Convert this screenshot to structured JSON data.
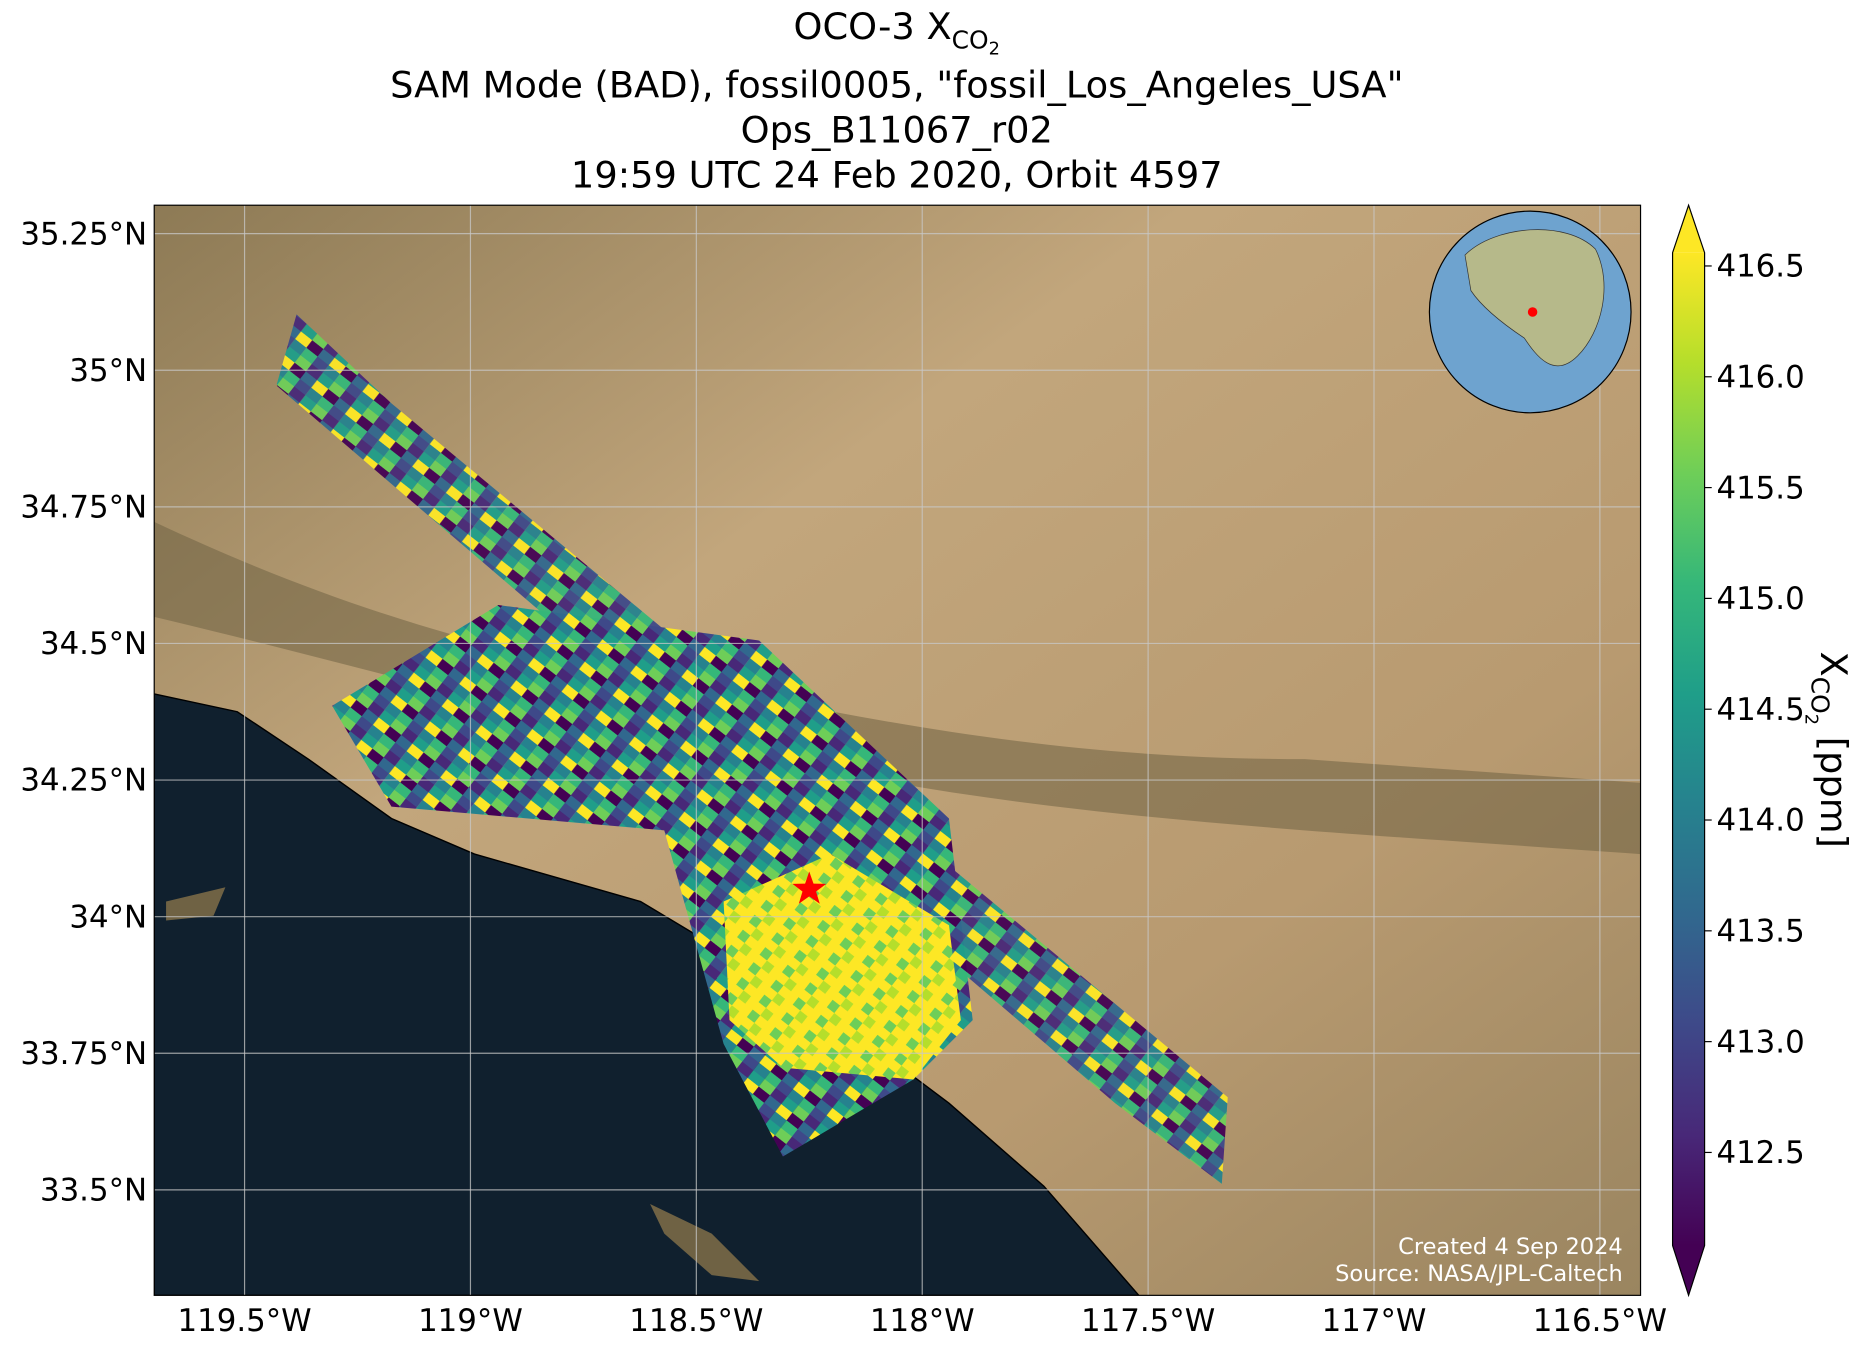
{
  "chart_data": {
    "type": "map",
    "title": {
      "prefix": "OCO-3 X",
      "sub": "CO",
      "subsub": "2"
    },
    "subtitle": [
      "SAM Mode (BAD), fossil0005, \"fossil_Los_Angeles_USA\"",
      "Ops_B11067_r02",
      "19:59 UTC 24 Feb 2020, Orbit 4597"
    ],
    "xlim": [
      -119.7,
      -116.41
    ],
    "ylim": [
      33.307,
      35.302
    ],
    "xticks": [
      {
        "value": -119.5,
        "label": "119.5°W"
      },
      {
        "value": -119,
        "label": "119°W"
      },
      {
        "value": -118.5,
        "label": "118.5°W"
      },
      {
        "value": -118,
        "label": "118°W"
      },
      {
        "value": -117.5,
        "label": "117.5°W"
      },
      {
        "value": -117,
        "label": "117°W"
      },
      {
        "value": -116.5,
        "label": "116.5°W"
      }
    ],
    "yticks": [
      {
        "value": 33.5,
        "label": "33.5°N"
      },
      {
        "value": 33.75,
        "label": "33.75°N"
      },
      {
        "value": 34,
        "label": "34°N"
      },
      {
        "value": 34.25,
        "label": "34.25°N"
      },
      {
        "value": 34.5,
        "label": "34.5°N"
      },
      {
        "value": 34.75,
        "label": "34.75°N"
      },
      {
        "value": 35,
        "label": "35°N"
      },
      {
        "value": 35.25,
        "label": "35.25°N"
      }
    ],
    "grid": true,
    "target": {
      "lon": -118.25,
      "lat": 34.05,
      "color": "#ff0000"
    },
    "colorbar": {
      "label": {
        "prefix": "X",
        "sub": "CO",
        "subsub": "2",
        "suffix": " [ppm]"
      },
      "lim": [
        412.08,
        416.56
      ],
      "ticks": [
        412.5,
        {
          "value": 413,
          "label": "413.0"
        },
        413.5,
        {
          "value": 414,
          "label": "414.0"
        },
        414.5,
        {
          "value": 415,
          "label": "415.0"
        },
        415.5,
        {
          "value": 416,
          "label": "416.0"
        },
        416.5
      ],
      "colormap": [
        "#440154",
        "#482878",
        "#3e4989",
        "#31688e",
        "#26828e",
        "#1f9e89",
        "#35b779",
        "#6ece58",
        "#b5de2b",
        "#fde725"
      ]
    },
    "credits": [
      "Created 4 Sep 2024",
      "Source: NASA/JPL-Caltech"
    ]
  }
}
